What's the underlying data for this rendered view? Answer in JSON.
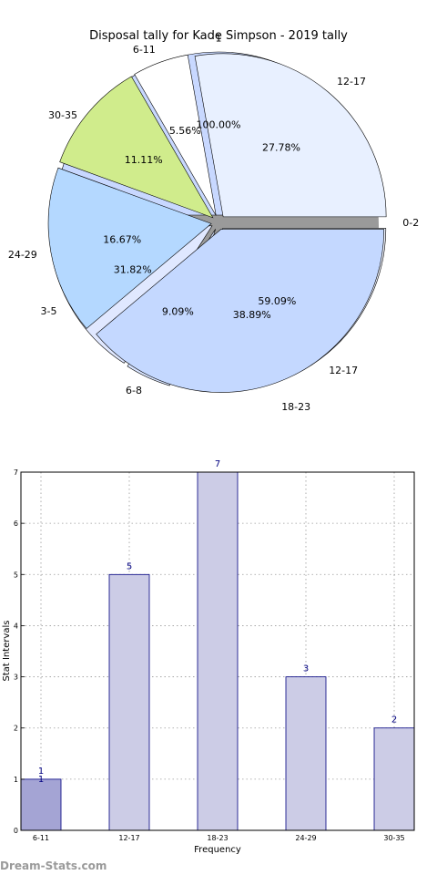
{
  "chart_data": [
    {
      "type": "pie",
      "title": "Disposal tally for Kade Simpson - 2019 tally",
      "series": [
        {
          "slices": [
            {
              "label": "0-2",
              "value": 0.0,
              "pct_label": "",
              "color": "#FFFFFF"
            },
            {
              "label": "1",
              "value": 100.0,
              "pct_label": "100.00%",
              "color": "#C8D8FF"
            },
            {
              "label": "3-5",
              "value": 31.82,
              "pct_label": "31.82%",
              "color": "#E0E8FF"
            },
            {
              "label": "6-8",
              "value": 9.09,
              "pct_label": "9.09%",
              "color": "#D8E4FF"
            },
            {
              "label": "12-17",
              "value": 59.09,
              "pct_label": "59.09%",
              "color": "#F0F4FF"
            }
          ]
        },
        {
          "slices": [
            {
              "label": "12-17",
              "value": 27.78,
              "pct_label": "27.78%",
              "color": "#E8F0FF"
            },
            {
              "label": "6-11",
              "value": 5.56,
              "pct_label": "5.56%",
              "color": "#FFFFFF"
            },
            {
              "label": "30-35",
              "value": 11.11,
              "pct_label": "11.11%",
              "color": "#D0EC8C"
            },
            {
              "label": "24-29",
              "value": 16.67,
              "pct_label": "16.67%",
              "color": "#B4D8FF"
            },
            {
              "label": "18-23",
              "value": 38.89,
              "pct_label": "38.89%",
              "color": "#C4D8FF"
            }
          ]
        }
      ]
    },
    {
      "type": "bar",
      "categories": [
        "6-11",
        "12-17",
        "18-23",
        "24-29",
        "30-35"
      ],
      "values": [
        1,
        5,
        7,
        3,
        2
      ],
      "xlabel": "Frequency",
      "ylabel": "Stat Intervals",
      "ylim": [
        0,
        7
      ],
      "yticks": [
        "0",
        "1",
        "2",
        "3",
        "4",
        "5",
        "6",
        "7"
      ],
      "grid": true,
      "bar_color": "#CCCCE6",
      "highlight_color": "#A4A4D4",
      "edge_color": "#000080",
      "extra_label": "1"
    }
  ],
  "watermark": "Dream-Stats.com"
}
